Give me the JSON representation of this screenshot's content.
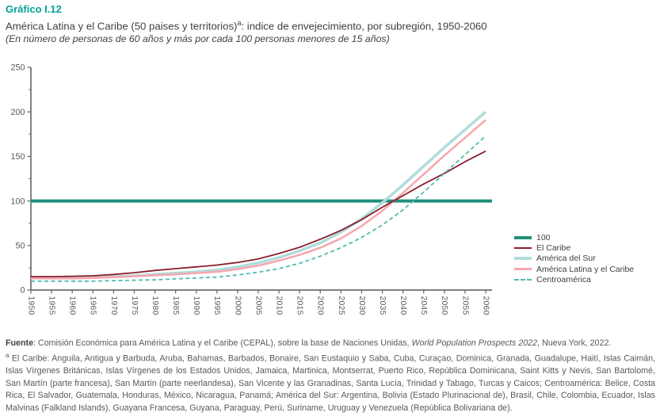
{
  "header": {
    "label": "Gráfico I.12",
    "title_main": "América Latina y el Caribe (50 paises y territorios)",
    "title_sup": "a",
    "title_rest": ": indice de envejecimiento, por subregión, 1950-2060",
    "subtitle": "(En número de personas de 60 años y más por cada 100 personas menores de 15 años)"
  },
  "chart_data": {
    "type": "line",
    "title": "América Latina y el Caribe (50 paises y territorios): indice de envejecimiento, por subregión, 1950-2060",
    "subtitle": "(En número de personas de 60 años y más por cada 100 personas menores de 15 años)",
    "xlabel": "",
    "ylabel": "",
    "xlim": [
      1950,
      2060
    ],
    "ylim": [
      0,
      250
    ],
    "yticks": [
      0,
      50,
      100,
      150,
      200,
      250
    ],
    "grid": false,
    "legend_position": "right-bottom",
    "x": [
      1950,
      1955,
      1960,
      1965,
      1970,
      1975,
      1980,
      1985,
      1990,
      1995,
      2000,
      2005,
      2010,
      2015,
      2020,
      2025,
      2030,
      2035,
      2040,
      2045,
      2050,
      2055,
      2060
    ],
    "series": [
      {
        "name": "100",
        "slug": "reference-100",
        "type": "reference",
        "value": 100,
        "color": "#218F7D"
      },
      {
        "name": "El Caribe",
        "slug": "el-caribe",
        "color": "#8A1E2D",
        "values": [
          15,
          15,
          15.5,
          16,
          17.5,
          19.5,
          22,
          24,
          26,
          28,
          31,
          35,
          41,
          48,
          57,
          67,
          79,
          93,
          106,
          119,
          131,
          144,
          156
        ]
      },
      {
        "name": "América del Sur",
        "slug": "america-del-sur",
        "color": "#B0DCDB",
        "values": [
          13.5,
          13.5,
          13.5,
          14,
          15,
          16,
          17.5,
          19,
          20.5,
          22.5,
          26,
          30.5,
          36.5,
          44,
          53,
          65,
          80,
          98,
          118,
          139,
          160,
          180,
          200
        ]
      },
      {
        "name": "América Latina y el Caribe",
        "slug": "america-latina-y-el-caribe",
        "color": "#F7A6AE",
        "values": [
          13,
          13,
          13,
          13.5,
          14.5,
          15.5,
          16.5,
          17.5,
          19,
          20.5,
          23.5,
          27.5,
          33,
          39.5,
          47.5,
          58,
          72,
          89,
          109,
          130,
          151,
          171,
          191
        ]
      },
      {
        "name": "Centroamérica",
        "slug": "centroamerica",
        "color": "#4FBCAE",
        "dashed": true,
        "values": [
          10,
          10,
          10,
          10,
          10.5,
          11,
          11.5,
          12.5,
          13.5,
          14.5,
          17,
          20,
          24,
          30,
          38,
          47.5,
          59,
          73,
          90,
          110,
          131,
          152,
          173
        ]
      }
    ]
  },
  "footer": {
    "fuente_label": "Fuente",
    "fuente_text_pre": ": Comisión Económica para América Latina y el Caribe (CEPAL), sobre la base de Naciones Unidas, ",
    "fuente_text_italic": "World Population Prospects 2022",
    "fuente_text_post": ", Nueva York, 2022.",
    "note_sup": "a",
    "note_text": "El Caribe: Anguila, Antigua y Barbuda, Aruba, Bahamas, Barbados, Bonaire, San Eustaquio y Saba, Cuba, Curaçao, Dominica, Granada, Guadalupe, Haití, Islas Caimán, Islas Vírgenes Británicas, Islas Vírgenes de los Estados Unidos, Jamaica, Martinica, Montserrat, Puerto Rico, República Dominicana, Saint Kitts y Nevis, San Bartolomé, San Martín (parte francesa), San Martín (parte neerlandesa), San Vicente y las Granadinas, Santa Lucía, Trinidad y Tabago, Turcas y Caicos; Centroamérica: Belice, Costa Rica, El Salvador, Guatemala, Honduras, México, Nicaragua, Panamá; América del Sur: Argentina, Bolivia (Estado Plurinacional de), Brasil, Chile, Colombia, Ecuador, Islas Malvinas (Falkland Islands), Guayana Francesa, Guyana, Paraguay, Perú, Suriname, Uruguay y Venezuela (República Bolivariana de)."
  },
  "colors": {
    "accent_teal": "#00A29A",
    "reference_line": "#218F7D",
    "el_caribe": "#8A1E2D",
    "america_del_sur": "#B0DCDB",
    "america_latina_caribe": "#F7A6AE",
    "centroamerica": "#4FBCAE",
    "axis_gray": "#6D6E71",
    "text_gray": "#58595B",
    "title_gray": "#414042"
  }
}
